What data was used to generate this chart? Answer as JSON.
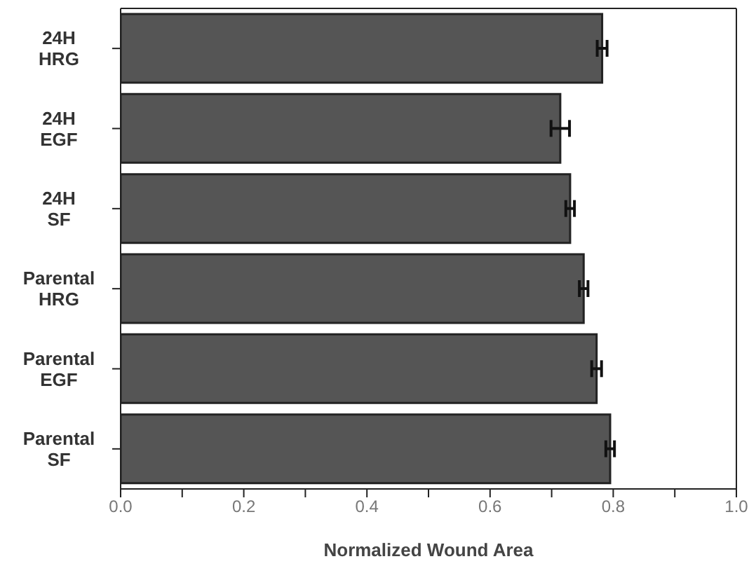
{
  "chart_data": {
    "type": "bar",
    "orientation": "horizontal",
    "xlabel": "Normalized Wound Area",
    "categories": [
      "24H HRG",
      "24H EGF",
      "24H SF",
      "Parental HRG",
      "Parental EGF",
      "Parental SF"
    ],
    "values": [
      0.782,
      0.714,
      0.73,
      0.752,
      0.773,
      0.795
    ],
    "errors": [
      0.008,
      0.015,
      0.007,
      0.007,
      0.008,
      0.007
    ],
    "color": "#555555",
    "xlim": [
      0,
      1
    ],
    "xticks": [
      {
        "value": 0,
        "label": "0.0"
      },
      {
        "value": 0.1,
        "label": null
      },
      {
        "value": 0.2,
        "label": "0.2"
      },
      {
        "value": 0.3,
        "label": null
      },
      {
        "value": 0.4,
        "label": "0.4"
      },
      {
        "value": 0.5,
        "label": null
      },
      {
        "value": 0.6,
        "label": "0.6"
      },
      {
        "value": 0.7,
        "label": null
      },
      {
        "value": 0.8,
        "label": "0.8"
      },
      {
        "value": 0.9,
        "label": null
      },
      {
        "value": 1,
        "label": "1.0"
      }
    ],
    "grid": false,
    "legend": false
  }
}
